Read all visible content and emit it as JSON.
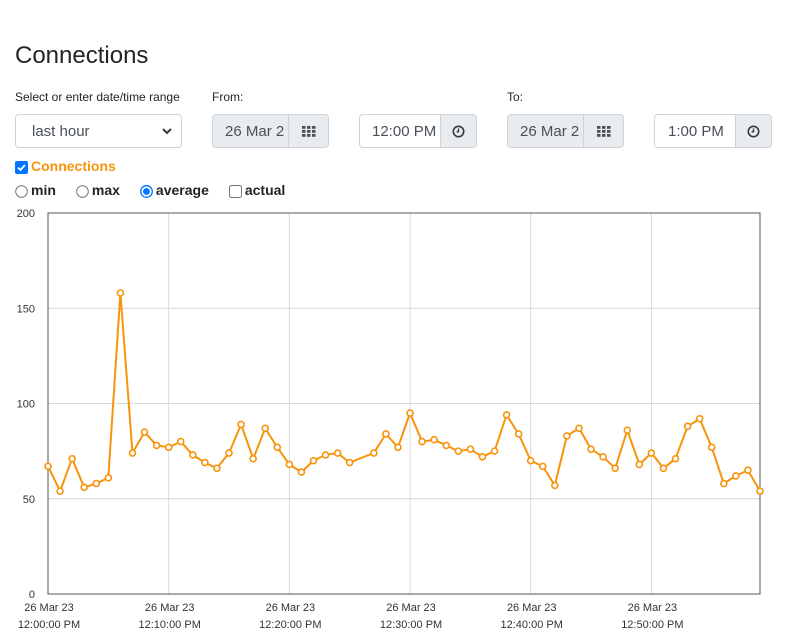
{
  "page": {
    "title": "Connections"
  },
  "controls": {
    "range_label": "Select or enter date/time range",
    "range_value": "last hour",
    "from_label": "From:",
    "from_date": "26 Mar 2",
    "from_time": "12:00 PM",
    "to_label": "To:",
    "to_date": "26 Mar 2",
    "to_time": "1:00 PM"
  },
  "legend": {
    "series_label": "Connections",
    "series_checked": true,
    "series_color": "#f7940c"
  },
  "mode_options": [
    {
      "label": "min",
      "type": "radio",
      "checked": false
    },
    {
      "label": "max",
      "type": "radio",
      "checked": false
    },
    {
      "label": "average",
      "type": "radio",
      "checked": true
    },
    {
      "label": "actual",
      "type": "checkbox",
      "checked": false
    }
  ],
  "chart_data": {
    "type": "line",
    "ylim": [
      0,
      200
    ],
    "yticks": [
      0,
      50,
      100,
      150,
      200
    ],
    "xlim_minutes": [
      0,
      59
    ],
    "x_tick_positions_minutes": [
      0,
      10,
      20,
      30,
      40,
      50
    ],
    "x_tick_labels": [
      [
        "26 Mar 23",
        "12:00:00 PM"
      ],
      [
        "26 Mar 23",
        "12:10:00 PM"
      ],
      [
        "26 Mar 23",
        "12:20:00 PM"
      ],
      [
        "26 Mar 23",
        "12:30:00 PM"
      ],
      [
        "26 Mar 23",
        "12:40:00 PM"
      ],
      [
        "26 Mar 23",
        "12:50:00 PM"
      ]
    ],
    "grid": true,
    "series": [
      {
        "color": "#f7940c",
        "x": [
          0,
          1,
          2,
          3,
          4,
          5,
          6,
          7,
          8,
          9,
          10,
          11,
          12,
          13,
          14,
          15,
          16,
          17,
          18,
          19,
          20,
          21,
          22,
          23,
          24,
          25,
          27,
          28,
          29,
          30,
          31,
          32,
          33,
          34,
          35,
          36,
          37,
          38,
          39,
          40,
          41,
          42,
          43,
          44,
          45,
          46,
          47,
          48,
          49,
          50,
          51,
          52,
          53,
          54,
          55,
          56,
          57,
          58,
          59
        ],
        "values": [
          67,
          54,
          71,
          56,
          58,
          61,
          158,
          74,
          85,
          78,
          77,
          80,
          73,
          69,
          66,
          74,
          89,
          71,
          87,
          77,
          68,
          64,
          70,
          73,
          74,
          69,
          74,
          84,
          77,
          95,
          80,
          81,
          78,
          75,
          76,
          72,
          75,
          94,
          84,
          70,
          67,
          57,
          83,
          87,
          76,
          72,
          66,
          86,
          68,
          74,
          66,
          71,
          88,
          92,
          77,
          58,
          62,
          65,
          54
        ]
      }
    ]
  }
}
